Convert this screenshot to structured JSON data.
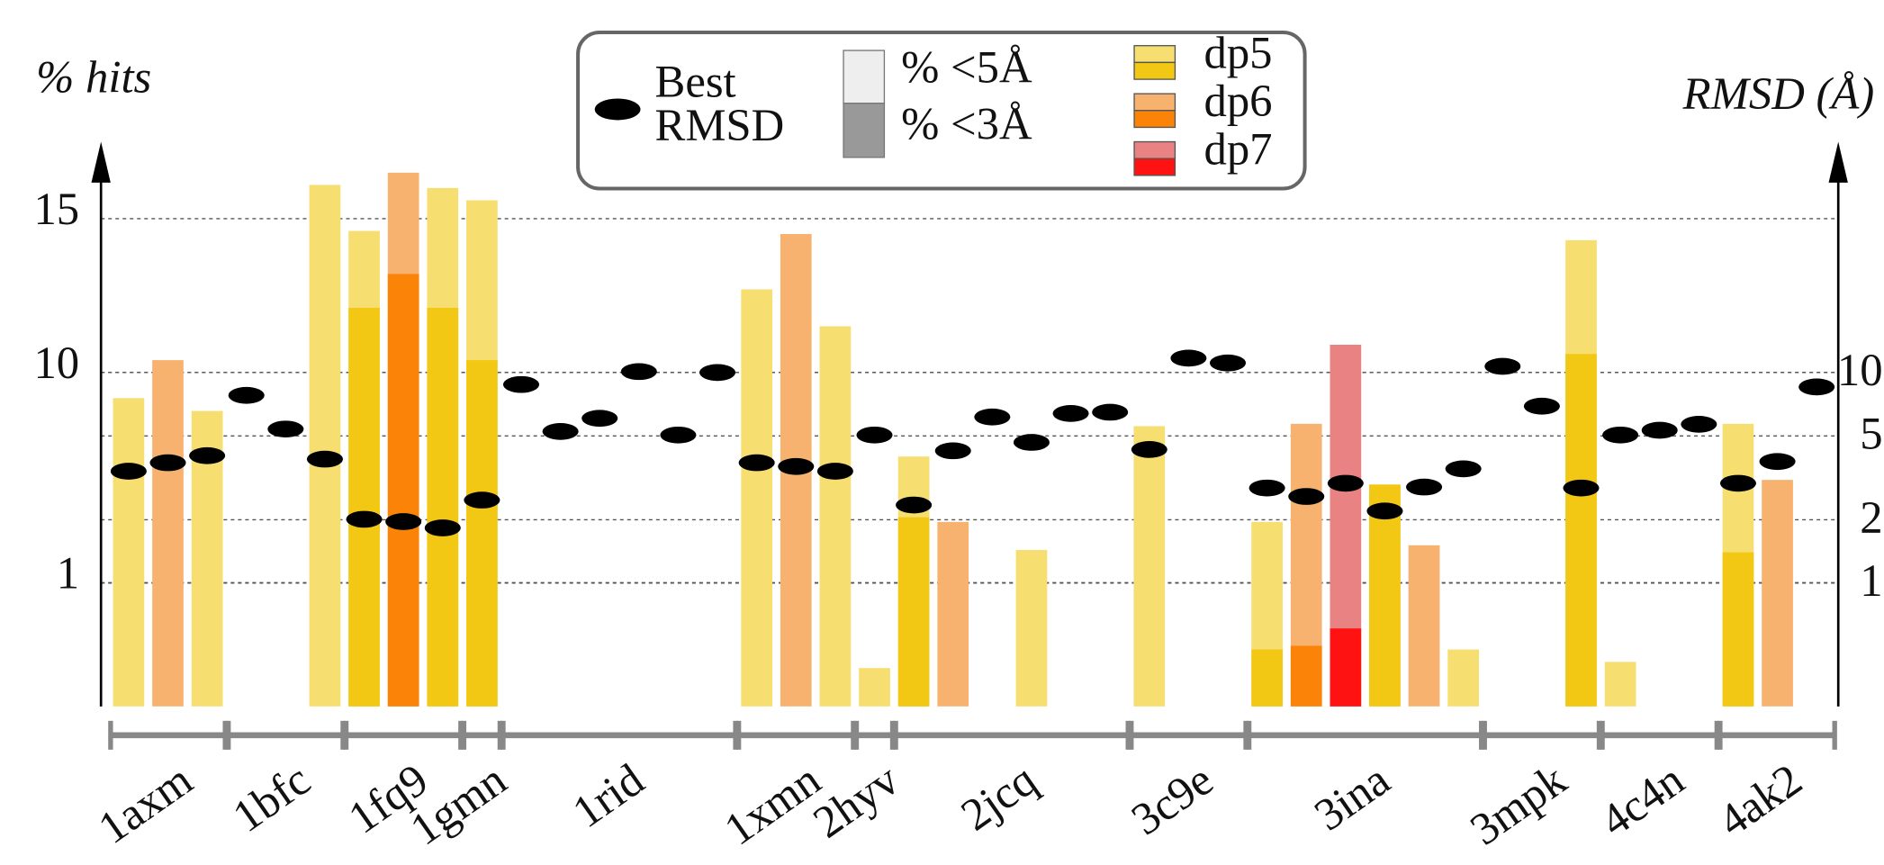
{
  "chart_data": {
    "type": "bar",
    "y_label": "% hits",
    "y2_label": "RMSD (Å)",
    "ylim": [
      0,
      17
    ],
    "yticks": [
      1,
      10,
      15
    ],
    "y2lim": [
      0.26,
      105
    ],
    "y2ticks": [
      1,
      2,
      5,
      10
    ],
    "y2_log": true,
    "grid": true,
    "legend": {
      "rmsd": [
        "Best",
        "RMSD"
      ],
      "pct5": "% <5Å",
      "pct3": "% <3Å",
      "light": "#eeeeee",
      "dark": "#999999"
    },
    "series": [
      {
        "name": "dp5",
        "light": "#f6de70",
        "dark": "#f2c814"
      },
      {
        "name": "dp6",
        "light": "#f7b270",
        "dark": "#fb8408"
      },
      {
        "name": "dp7",
        "light": "#e98282",
        "dark": "#fe1212"
      }
    ],
    "groups": [
      {
        "name": "1axm",
        "bars": [
          {
            "kind": "dp5",
            "pct5": 8.9,
            "rmsd": 3.4
          },
          {
            "kind": "dp6",
            "pct5": 10.4,
            "rmsd": 3.73
          },
          {
            "kind": "dp5",
            "pct5": 8.35,
            "rmsd": 4.03
          }
        ]
      },
      {
        "name": "1bfc",
        "bars": [
          {
            "rmsd": 7.79
          },
          {
            "rmsd": 5.39
          },
          {
            "kind": "dp5",
            "pct5": 16.1,
            "rmsd": 3.88
          }
        ]
      },
      {
        "name": "1fq9",
        "bars": [
          {
            "kind": "dp5",
            "pct5": 14.6,
            "pct3": 12.1,
            "rmsd": 2.01
          },
          {
            "kind": "dp6",
            "pct5": 16.5,
            "pct3": 13.2,
            "rmsd": 1.96
          },
          {
            "kind": "dp5",
            "pct5": 16.0,
            "pct3": 12.1,
            "rmsd": 1.83
          }
        ]
      },
      {
        "name": "1gmn",
        "bars": [
          {
            "kind": "dp5",
            "pct5": 15.6,
            "pct3": 10.4,
            "rmsd": 2.48
          }
        ]
      },
      {
        "name": "1rid",
        "bars": [
          {
            "rmsd": 8.77
          },
          {
            "rmsd": 5.25
          },
          {
            "rmsd": 6.06
          },
          {
            "rmsd": 10.1
          },
          {
            "rmsd": 5.05
          },
          {
            "rmsd": 10.0
          }
        ]
      },
      {
        "name": "1xmn",
        "bars": [
          {
            "kind": "dp5",
            "pct5": 12.7,
            "rmsd": 3.73
          },
          {
            "kind": "dp6",
            "pct5": 14.5,
            "rmsd": 3.58
          },
          {
            "kind": "dp5",
            "pct5": 11.5,
            "rmsd": 3.4
          }
        ]
      },
      {
        "name": "2hyv",
        "bars": [
          {
            "kind": "dp5",
            "pct5": 0.31,
            "rmsd": 5.05
          }
        ]
      },
      {
        "name": "2jcq",
        "bars": [
          {
            "kind": "dp5",
            "pct5": 6.4,
            "pct3": 3.8,
            "rmsd": 2.35
          },
          {
            "kind": "dp6",
            "pct5": 3.6,
            "rmsd": 4.25
          },
          {
            "rmsd": 6.15
          },
          {
            "kind": "dp5",
            "pct5": 2.4,
            "rmsd": 4.66
          },
          {
            "rmsd": 6.39
          },
          {
            "rmsd": 6.48
          }
        ]
      },
      {
        "name": "3c9e",
        "bars": [
          {
            "kind": "dp5",
            "pct5": 7.7,
            "rmsd": 4.31
          },
          {
            "rmsd": 11.7
          },
          {
            "rmsd": 11.1
          }
        ]
      },
      {
        "name": "3ina",
        "bars": [
          {
            "kind": "dp5",
            "pct5": 3.6,
            "pct3": 0.46,
            "rmsd": 2.83
          },
          {
            "kind": "dp6",
            "pct5": 7.8,
            "pct3": 0.49,
            "rmsd": 2.58
          },
          {
            "kind": "dp7",
            "pct5": 10.9,
            "pct3": 0.63,
            "rmsd": 2.98
          },
          {
            "kind": "dp5",
            "pct5": 5.2,
            "pct3": 5.2,
            "rmsd": 2.2
          },
          {
            "kind": "dp6",
            "pct5": 2.6,
            "rmsd": 2.86
          },
          {
            "kind": "dp5",
            "pct5": 0.46,
            "rmsd": 3.49
          }
        ]
      },
      {
        "name": "3mpk",
        "bars": [
          {
            "rmsd": 10.7
          },
          {
            "rmsd": 6.92
          },
          {
            "kind": "dp5",
            "pct5": 14.3,
            "pct3": 10.6,
            "rmsd": 2.83
          }
        ]
      },
      {
        "name": "4c4n",
        "bars": [
          {
            "kind": "dp5",
            "pct5": 0.36,
            "rmsd": 5.05
          },
          {
            "rmsd": 5.32
          },
          {
            "rmsd": 5.68
          }
        ]
      },
      {
        "name": "4ak2",
        "bars": [
          {
            "kind": "dp5",
            "pct5": 7.8,
            "pct3": 2.3,
            "rmsd": 2.98
          },
          {
            "kind": "dp6",
            "pct5": 5.4,
            "rmsd": 3.78
          },
          {
            "rmsd": 8.54
          }
        ]
      }
    ]
  }
}
